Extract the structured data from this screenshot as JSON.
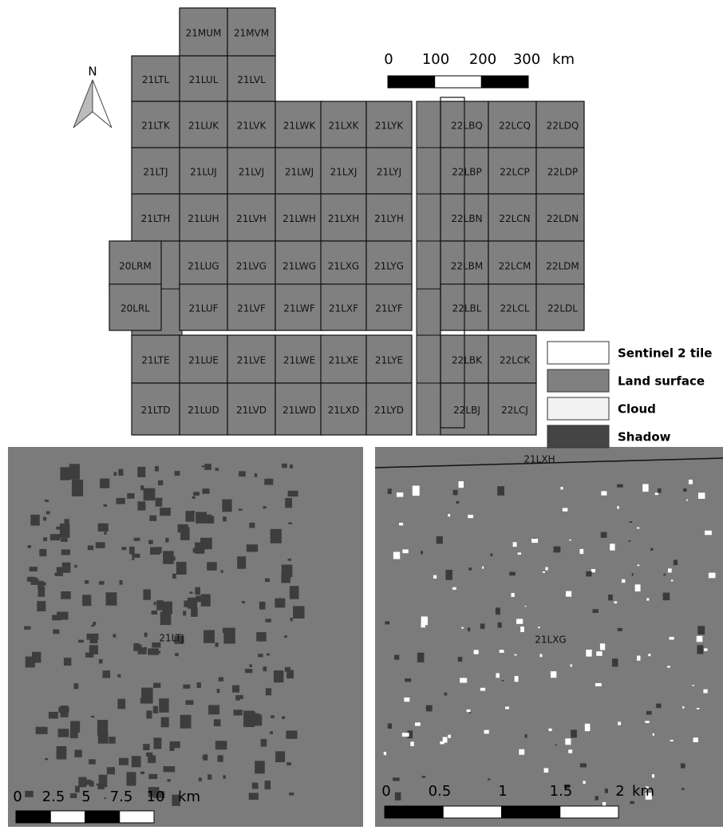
{
  "map": {
    "north": "N",
    "scale_bar": {
      "labels": [
        "0",
        "100",
        "200",
        "300"
      ],
      "unit": "km"
    },
    "tile_rows": [
      [
        "21MUM",
        "21MVM"
      ],
      [
        "21LTL",
        "21LUL",
        "21LVL"
      ],
      [
        "21LTK",
        "21LUK",
        "21LVK",
        "21LWK",
        "21LXK",
        "21LYK",
        "22LBQ",
        "22LCQ",
        "22LDQ"
      ],
      [
        "21LTJ",
        "21LUJ",
        "21LVJ",
        "21LWJ",
        "21LXJ",
        "21LYJ",
        "22LBP",
        "22LCP",
        "22LDP"
      ],
      [
        "21LTH",
        "21LUH",
        "21LVH",
        "21LWH",
        "21LXH",
        "21LYH",
        "22LBN",
        "22LCN",
        "22LDN"
      ],
      [
        "20LRM",
        "21LUG",
        "21LVG",
        "21LWG",
        "21LXG",
        "21LYG",
        "22LBM",
        "22LCM",
        "22LDM"
      ],
      [
        "20LRL",
        "21LUF",
        "21LVF",
        "21LWF",
        "21LXF",
        "21LYF",
        "22LBL",
        "22LCL",
        "22LDL"
      ],
      [
        "21LTE",
        "21LUE",
        "21LVE",
        "21LWE",
        "21LXE",
        "21LYE",
        "22LBK",
        "22LCK"
      ],
      [
        "21LTD",
        "21LUD",
        "21LVD",
        "21LWD",
        "21LXD",
        "21LYD",
        "22LBJ",
        "22LCJ"
      ]
    ],
    "legend": [
      "Sentinel 2 tile",
      "Land surface",
      "Cloud",
      "Shadow"
    ]
  },
  "panels": [
    {
      "tile_labels": [
        "21LTJ"
      ],
      "scale_bar": {
        "labels": [
          "0",
          "2.5",
          "5",
          "7.5",
          "10"
        ],
        "unit": "km"
      }
    },
    {
      "tile_labels": [
        "21LXH",
        "21LXG"
      ],
      "scale_bar": {
        "labels": [
          "0",
          "0.5",
          "1",
          "1.5",
          "2"
        ],
        "unit": "km"
      }
    }
  ]
}
